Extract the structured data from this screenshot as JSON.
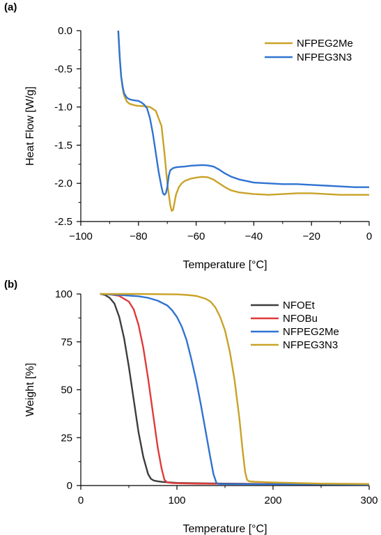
{
  "chart_data": [
    {
      "panel": "(a)",
      "type": "line",
      "xlabel": "Temperature [°C]",
      "ylabel": "Heat Flow [W/g]",
      "xlim": [
        -100,
        0
      ],
      "ylim": [
        -2.5,
        0.0
      ],
      "xticks": [
        -100,
        -80,
        -60,
        -40,
        -20,
        0
      ],
      "xtick_labels": [
        "−100",
        "−80",
        "−60",
        "−40",
        "−20",
        "0"
      ],
      "yticks": [
        0.0,
        -0.5,
        -1.0,
        -1.5,
        -2.0,
        -2.5
      ],
      "ytick_labels": [
        "0.0",
        "-0.5",
        "-1.0",
        "-1.5",
        "-2.0",
        "-2.5"
      ],
      "legend_position": "top-right",
      "series": [
        {
          "name": "NFPEG2Me",
          "color": "#C9A227",
          "x": [
            -87,
            -86.5,
            -86,
            -85.5,
            -85,
            -84,
            -83,
            -82,
            -81,
            -80,
            -78,
            -76,
            -74,
            -72,
            -71,
            -70,
            -69,
            -68.5,
            -68,
            -67.5,
            -67,
            -66,
            -65,
            -64,
            -62,
            -60,
            -58,
            -56,
            -54,
            -52,
            -50,
            -48,
            -45,
            -40,
            -35,
            -30,
            -25,
            -20,
            -15,
            -10,
            -5,
            0
          ],
          "y": [
            0.0,
            -0.35,
            -0.6,
            -0.75,
            -0.85,
            -0.93,
            -0.96,
            -0.97,
            -0.98,
            -0.985,
            -0.99,
            -1.0,
            -1.05,
            -1.25,
            -1.6,
            -2.0,
            -2.28,
            -2.36,
            -2.35,
            -2.25,
            -2.15,
            -2.05,
            -2.0,
            -1.97,
            -1.94,
            -1.925,
            -1.915,
            -1.92,
            -1.95,
            -2.0,
            -2.05,
            -2.09,
            -2.12,
            -2.14,
            -2.15,
            -2.14,
            -2.13,
            -2.13,
            -2.14,
            -2.15,
            -2.15,
            -2.15
          ]
        },
        {
          "name": "NFPEG3N3",
          "color": "#2F73D2",
          "x": [
            -87,
            -86.5,
            -86,
            -85.5,
            -85,
            -84,
            -83,
            -82,
            -81,
            -80,
            -79,
            -78,
            -77,
            -76,
            -75,
            -74,
            -73,
            -72,
            -71.5,
            -71,
            -70.5,
            -70,
            -69.5,
            -69,
            -68,
            -67,
            -66,
            -64,
            -62,
            -60,
            -58,
            -56,
            -54,
            -52,
            -50,
            -48,
            -45,
            -40,
            -35,
            -30,
            -25,
            -20,
            -15,
            -10,
            -5,
            0
          ],
          "y": [
            0.0,
            -0.35,
            -0.6,
            -0.73,
            -0.82,
            -0.88,
            -0.9,
            -0.91,
            -0.915,
            -0.92,
            -0.94,
            -0.97,
            -1.02,
            -1.15,
            -1.35,
            -1.6,
            -1.85,
            -2.05,
            -2.13,
            -2.15,
            -2.13,
            -2.05,
            -1.9,
            -1.83,
            -1.8,
            -1.79,
            -1.785,
            -1.78,
            -1.77,
            -1.765,
            -1.76,
            -1.765,
            -1.78,
            -1.82,
            -1.87,
            -1.91,
            -1.95,
            -1.99,
            -2.0,
            -2.01,
            -2.01,
            -2.02,
            -2.03,
            -2.04,
            -2.05,
            -2.05
          ]
        }
      ]
    },
    {
      "panel": "(b)",
      "type": "line",
      "xlabel": "Temperature [°C]",
      "ylabel": "Weight [%]",
      "xlim": [
        0,
        300
      ],
      "ylim": [
        0,
        100
      ],
      "xticks": [
        0,
        100,
        200,
        300
      ],
      "xtick_labels": [
        "0",
        "100",
        "200",
        "300"
      ],
      "yticks": [
        0,
        25,
        50,
        75,
        100
      ],
      "ytick_labels": [
        "0",
        "25",
        "50",
        "75",
        "100"
      ],
      "legend_position": "top-right",
      "series": [
        {
          "name": "NFOEt",
          "color": "#3D3D3D",
          "x": [
            20,
            25,
            30,
            35,
            40,
            45,
            50,
            55,
            60,
            65,
            70,
            73,
            76,
            80,
            85,
            90,
            100,
            120,
            150,
            200,
            250,
            300
          ],
          "y": [
            100,
            99.5,
            98,
            95,
            88,
            77,
            62,
            45,
            28,
            15,
            6,
            3.5,
            2.6,
            2.2,
            1.9,
            1.7,
            1.4,
            1.2,
            1.0,
            0.8,
            0.7,
            0.6
          ]
        },
        {
          "name": "NFOBu",
          "color": "#E03A3A",
          "x": [
            20,
            30,
            40,
            50,
            55,
            60,
            65,
            70,
            75,
            80,
            84,
            87,
            90,
            95,
            100,
            120,
            150,
            200,
            250,
            300
          ],
          "y": [
            100,
            99.8,
            99,
            96,
            92,
            84,
            72,
            56,
            38,
            20,
            9,
            3,
            1.6,
            1.3,
            1.2,
            1.0,
            0.9,
            0.8,
            0.7,
            0.6
          ]
        },
        {
          "name": "NFPEG2Me",
          "color": "#2F73D2",
          "x": [
            20,
            40,
            60,
            70,
            80,
            90,
            95,
            100,
            105,
            110,
            115,
            120,
            125,
            130,
            135,
            138,
            141,
            143,
            145,
            150,
            200,
            250,
            300
          ],
          "y": [
            100,
            99.5,
            98.8,
            98,
            96.5,
            94,
            91.5,
            88,
            83,
            76,
            66,
            55,
            42,
            28,
            14,
            6,
            1.5,
            0.9,
            0.8,
            0.8,
            0.7,
            0.6,
            0.5
          ]
        },
        {
          "name": "NFPEG3N3",
          "color": "#C9A227",
          "x": [
            20,
            60,
            100,
            110,
            120,
            130,
            135,
            140,
            145,
            150,
            155,
            160,
            165,
            168,
            171,
            173,
            175,
            180,
            200,
            250,
            300
          ],
          "y": [
            100,
            100,
            99.8,
            99.5,
            99,
            97.5,
            96,
            93,
            88,
            81,
            70,
            55,
            35,
            20,
            7,
            3,
            2.2,
            2.0,
            1.6,
            1.0,
            0.8
          ]
        }
      ]
    }
  ]
}
